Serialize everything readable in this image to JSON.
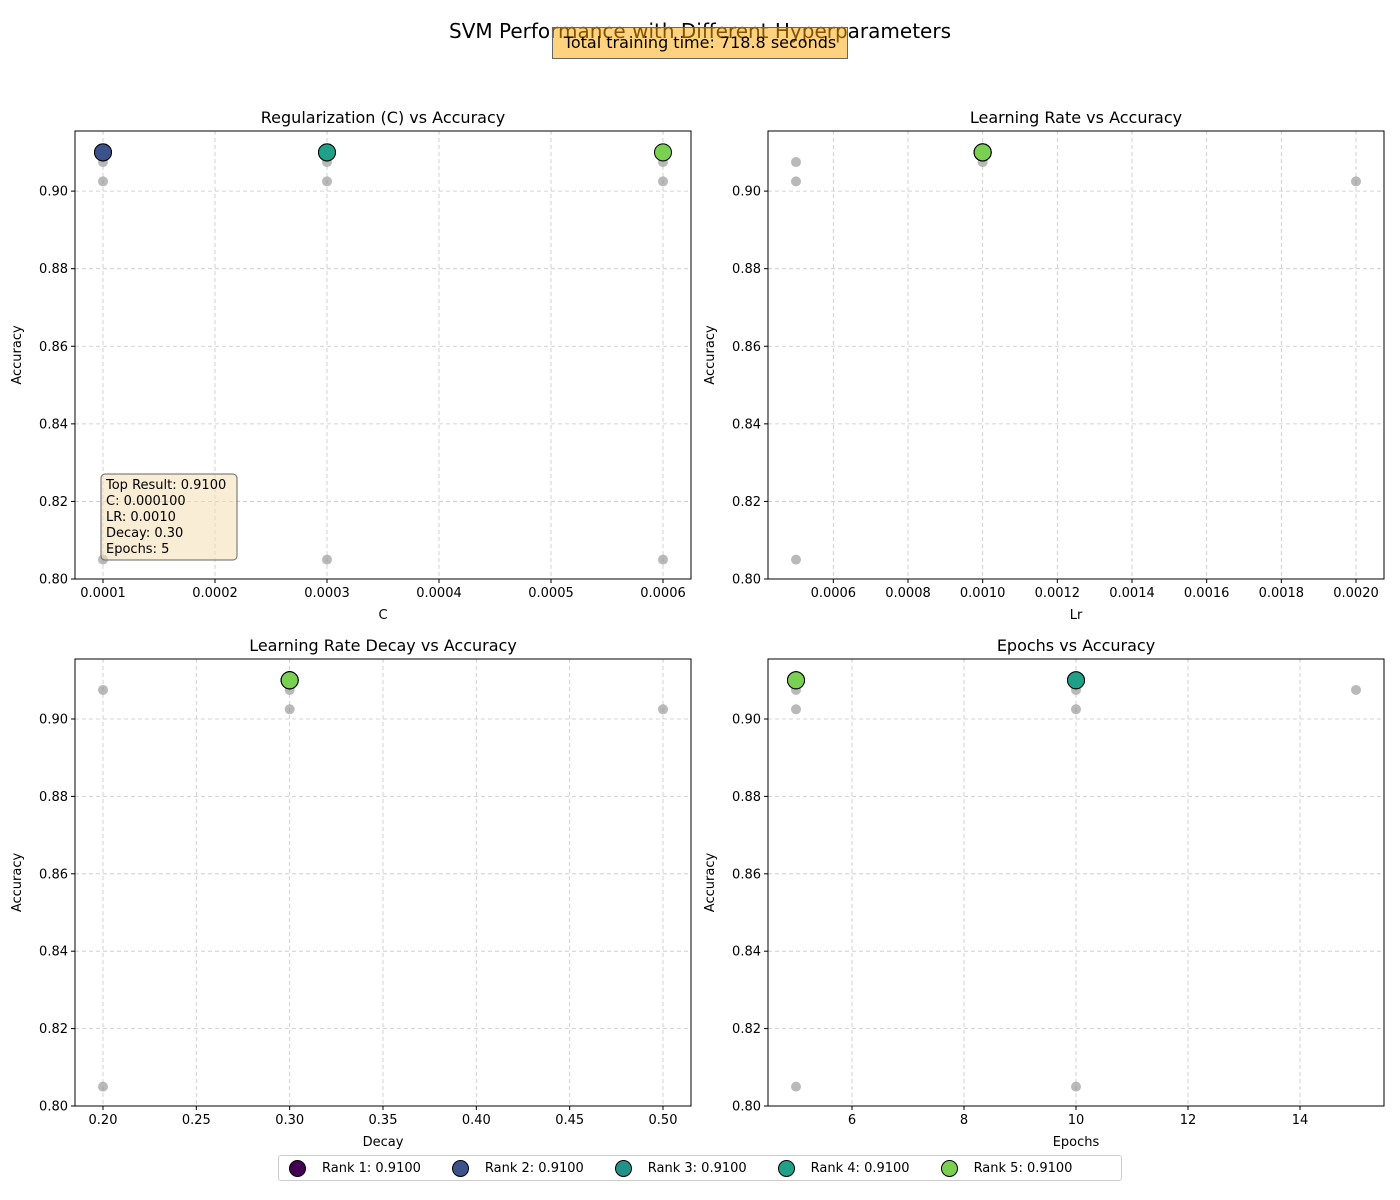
{
  "figure": {
    "title": "SVM Performance with Different Hyperparameters",
    "training_time_text": "Total training time: 718.8 seconds"
  },
  "legend": [
    {
      "label": "Rank 1: 0.9100",
      "color": "#440154"
    },
    {
      "label": "Rank 2: 0.9100",
      "color": "#3b528b"
    },
    {
      "label": "Rank 3: 0.9100",
      "color": "#21918c"
    },
    {
      "label": "Rank 4: 0.9100",
      "color": "#1fa187"
    },
    {
      "label": "Rank 5: 0.9100",
      "color": "#7ad151"
    }
  ],
  "annotation": [
    "Top Result: 0.9100",
    "C: 0.000100",
    "LR: 0.0010",
    "Decay: 0.30",
    "Epochs: 5"
  ],
  "chart_data": [
    {
      "type": "scatter",
      "title": "Regularization (C) vs Accuracy",
      "xlabel": "C",
      "ylabel": "Accuracy",
      "xlim": [
        7.5e-05,
        0.000625
      ],
      "ylim": [
        0.8,
        0.9155
      ],
      "xticks": [
        0.0001,
        0.0002,
        0.0003,
        0.0004,
        0.0005,
        0.0006
      ],
      "xtick_labels": [
        "0.0001",
        "0.0002",
        "0.0003",
        "0.0004",
        "0.0005",
        "0.0006"
      ],
      "yticks": [
        0.8,
        0.82,
        0.84,
        0.86,
        0.88,
        0.9
      ],
      "ytick_labels": [
        "0.80",
        "0.82",
        "0.84",
        "0.86",
        "0.88",
        "0.90"
      ],
      "grid": true,
      "background_points": [
        {
          "x": 0.0001,
          "y": 0.9075
        },
        {
          "x": 0.0001,
          "y": 0.9025
        },
        {
          "x": 0.0001,
          "y": 0.805
        },
        {
          "x": 0.0003,
          "y": 0.9075
        },
        {
          "x": 0.0003,
          "y": 0.9025
        },
        {
          "x": 0.0003,
          "y": 0.805
        },
        {
          "x": 0.0006,
          "y": 0.9075
        },
        {
          "x": 0.0006,
          "y": 0.9025
        },
        {
          "x": 0.0006,
          "y": 0.805
        }
      ],
      "top_points": [
        {
          "rank": 1,
          "x": 0.0001,
          "y": 0.91
        },
        {
          "rank": 2,
          "x": 0.0001,
          "y": 0.91
        },
        {
          "rank": 3,
          "x": 0.0003,
          "y": 0.91
        },
        {
          "rank": 4,
          "x": 0.0003,
          "y": 0.91
        },
        {
          "rank": 5,
          "x": 0.0006,
          "y": 0.91
        }
      ]
    },
    {
      "type": "scatter",
      "title": "Learning Rate vs Accuracy",
      "xlabel": "Lr",
      "ylabel": "Accuracy",
      "xlim": [
        0.000425,
        0.002075
      ],
      "ylim": [
        0.8,
        0.9155
      ],
      "xticks": [
        0.0006,
        0.0008,
        0.001,
        0.0012,
        0.0014,
        0.0016,
        0.0018,
        0.002
      ],
      "xtick_labels": [
        "0.0006",
        "0.0008",
        "0.0010",
        "0.0012",
        "0.0014",
        "0.0016",
        "0.0018",
        "0.0020"
      ],
      "yticks": [
        0.8,
        0.82,
        0.84,
        0.86,
        0.88,
        0.9
      ],
      "ytick_labels": [
        "0.80",
        "0.82",
        "0.84",
        "0.86",
        "0.88",
        "0.90"
      ],
      "grid": true,
      "background_points": [
        {
          "x": 0.0005,
          "y": 0.9075
        },
        {
          "x": 0.0005,
          "y": 0.9025
        },
        {
          "x": 0.0005,
          "y": 0.805
        },
        {
          "x": 0.001,
          "y": 0.9075
        },
        {
          "x": 0.002,
          "y": 0.9025
        }
      ],
      "top_points": [
        {
          "rank": 1,
          "x": 0.001,
          "y": 0.91
        },
        {
          "rank": 2,
          "x": 0.001,
          "y": 0.91
        },
        {
          "rank": 3,
          "x": 0.001,
          "y": 0.91
        },
        {
          "rank": 4,
          "x": 0.001,
          "y": 0.91
        },
        {
          "rank": 5,
          "x": 0.001,
          "y": 0.91
        }
      ]
    },
    {
      "type": "scatter",
      "title": "Learning Rate Decay vs Accuracy",
      "xlabel": "Decay",
      "ylabel": "Accuracy",
      "xlim": [
        0.185,
        0.515
      ],
      "ylim": [
        0.8,
        0.9155
      ],
      "xticks": [
        0.2,
        0.25,
        0.3,
        0.35,
        0.4,
        0.45,
        0.5
      ],
      "xtick_labels": [
        "0.20",
        "0.25",
        "0.30",
        "0.35",
        "0.40",
        "0.45",
        "0.50"
      ],
      "yticks": [
        0.8,
        0.82,
        0.84,
        0.86,
        0.88,
        0.9
      ],
      "ytick_labels": [
        "0.80",
        "0.82",
        "0.84",
        "0.86",
        "0.88",
        "0.90"
      ],
      "grid": true,
      "background_points": [
        {
          "x": 0.2,
          "y": 0.9075
        },
        {
          "x": 0.2,
          "y": 0.805
        },
        {
          "x": 0.3,
          "y": 0.9075
        },
        {
          "x": 0.3,
          "y": 0.9025
        },
        {
          "x": 0.5,
          "y": 0.9025
        }
      ],
      "top_points": [
        {
          "rank": 1,
          "x": 0.3,
          "y": 0.91
        },
        {
          "rank": 2,
          "x": 0.3,
          "y": 0.91
        },
        {
          "rank": 3,
          "x": 0.3,
          "y": 0.91
        },
        {
          "rank": 4,
          "x": 0.3,
          "y": 0.91
        },
        {
          "rank": 5,
          "x": 0.3,
          "y": 0.91
        }
      ]
    },
    {
      "type": "scatter",
      "title": "Epochs vs Accuracy",
      "xlabel": "Epochs",
      "ylabel": "Accuracy",
      "xlim": [
        4.5,
        15.5
      ],
      "ylim": [
        0.8,
        0.9155
      ],
      "xticks": [
        6,
        8,
        10,
        12,
        14
      ],
      "xtick_labels": [
        "6",
        "8",
        "10",
        "12",
        "14"
      ],
      "yticks": [
        0.8,
        0.82,
        0.84,
        0.86,
        0.88,
        0.9
      ],
      "ytick_labels": [
        "0.80",
        "0.82",
        "0.84",
        "0.86",
        "0.88",
        "0.90"
      ],
      "grid": true,
      "background_points": [
        {
          "x": 5,
          "y": 0.9075
        },
        {
          "x": 5,
          "y": 0.9025
        },
        {
          "x": 5,
          "y": 0.805
        },
        {
          "x": 10,
          "y": 0.9075
        },
        {
          "x": 10,
          "y": 0.9025
        },
        {
          "x": 10,
          "y": 0.805
        },
        {
          "x": 15,
          "y": 0.9075
        }
      ],
      "top_points": [
        {
          "rank": 1,
          "x": 5,
          "y": 0.91
        },
        {
          "rank": 2,
          "x": 5,
          "y": 0.91
        },
        {
          "rank": 3,
          "x": 10,
          "y": 0.91
        },
        {
          "rank": 4,
          "x": 10,
          "y": 0.91
        },
        {
          "rank": 5,
          "x": 5,
          "y": 0.91
        }
      ]
    }
  ]
}
